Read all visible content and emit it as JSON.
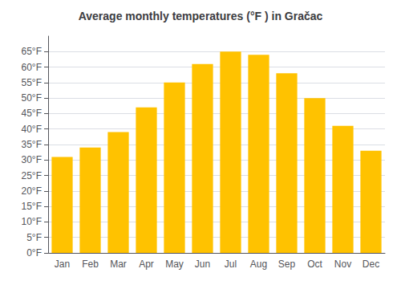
{
  "chart_data": {
    "type": "bar",
    "title": "Average monthly temperatures (°F ) in Gračac",
    "categories": [
      "Jan",
      "Feb",
      "Mar",
      "Apr",
      "May",
      "Jun",
      "Jul",
      "Aug",
      "Sep",
      "Oct",
      "Nov",
      "Dec"
    ],
    "values": [
      31,
      34,
      39,
      47,
      55,
      61,
      65,
      64,
      58,
      50,
      41,
      33
    ],
    "color": "#FFC200",
    "ylim": [
      0,
      70
    ],
    "yticks": [
      {
        "value": 0,
        "label": "0°F"
      },
      {
        "value": 5,
        "label": "5°F"
      },
      {
        "value": 10,
        "label": "10°F"
      },
      {
        "value": 15,
        "label": "15°F"
      },
      {
        "value": 20,
        "label": "20°F"
      },
      {
        "value": 25,
        "label": "25°F"
      },
      {
        "value": 30,
        "label": "30°F"
      },
      {
        "value": 35,
        "label": "35°F"
      },
      {
        "value": 40,
        "label": "40°F"
      },
      {
        "value": 45,
        "label": "45°F"
      },
      {
        "value": 50,
        "label": "50°F"
      },
      {
        "value": 55,
        "label": "55°F"
      },
      {
        "value": 60,
        "label": "60°F"
      },
      {
        "value": 65,
        "label": "65°F"
      }
    ],
    "grid": true
  }
}
